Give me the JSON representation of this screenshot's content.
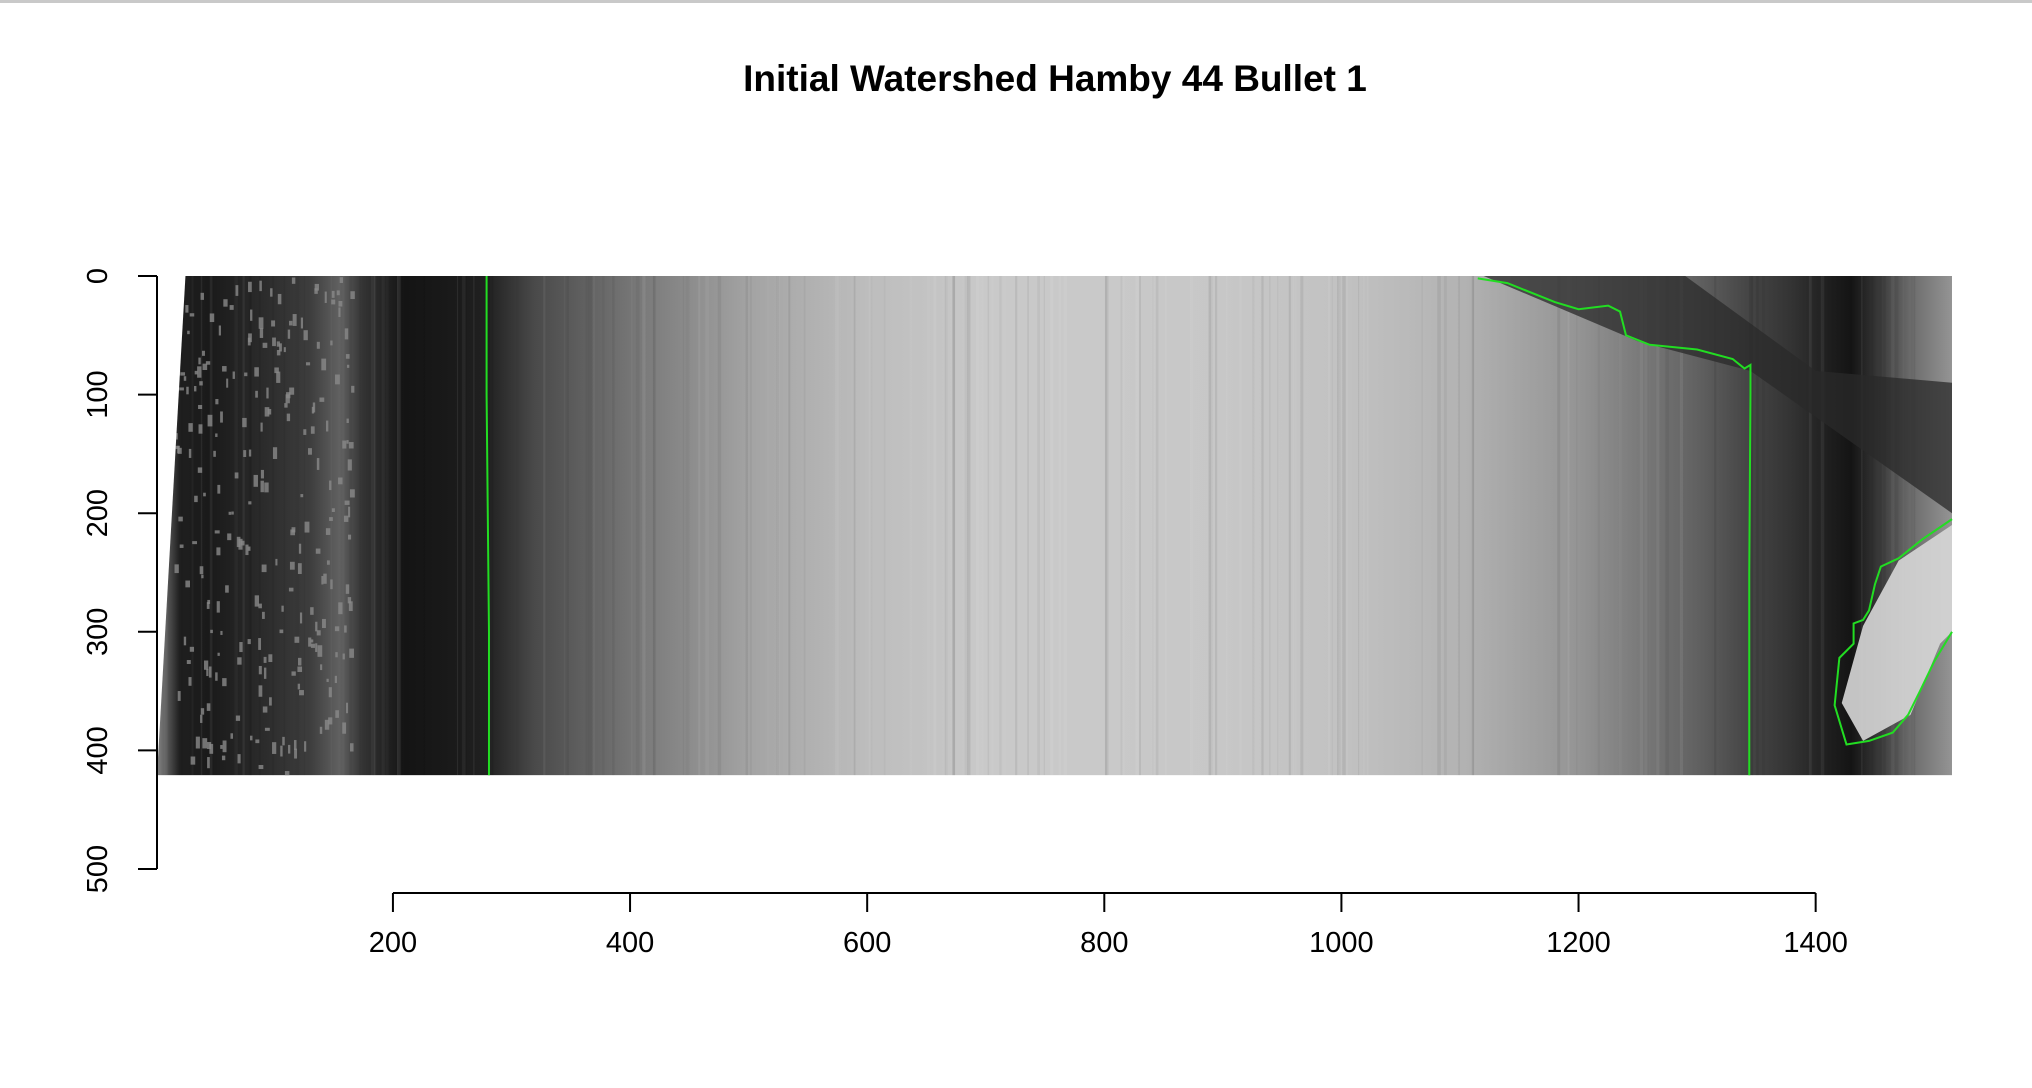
{
  "chart_data": {
    "type": "heatmap",
    "title": "Initial Watershed Hamby 44 Bullet 1",
    "xlabel": "",
    "ylabel": "",
    "xlim": [
      1,
      1515
    ],
    "ylim": [
      500,
      0
    ],
    "image_extent": {
      "x": [
        1,
        1515
      ],
      "y": [
        0,
        421
      ]
    },
    "x_ticks": [
      200,
      400,
      600,
      800,
      1000,
      1200,
      1400
    ],
    "y_ticks": [
      0,
      100,
      200,
      300,
      400,
      500
    ],
    "colormap": "grayscale",
    "grayscale_profile": {
      "x": [
        1,
        20,
        45,
        90,
        130,
        155,
        175,
        210,
        250,
        280,
        320,
        400,
        500,
        600,
        700,
        800,
        900,
        1000,
        1100,
        1200,
        1300,
        1340,
        1380,
        1410,
        1430,
        1450,
        1480,
        1515
      ],
      "gray_value": [
        0.52,
        0.12,
        0.1,
        0.17,
        0.24,
        0.38,
        0.2,
        0.08,
        0.1,
        0.13,
        0.29,
        0.46,
        0.64,
        0.74,
        0.79,
        0.79,
        0.78,
        0.76,
        0.7,
        0.58,
        0.38,
        0.28,
        0.2,
        0.12,
        0.08,
        0.2,
        0.42,
        0.58
      ]
    },
    "watershed_boundaries": {
      "color": "#22dd22",
      "lines": [
        {
          "x": [
            279,
            279,
            280,
            281,
            281
          ],
          "y": [
            0,
            100,
            200,
            300,
            421
          ]
        },
        {
          "x": [
            1115,
            1140,
            1180,
            1200,
            1225,
            1235,
            1240,
            1260,
            1300,
            1330,
            1340,
            1345,
            1345,
            1344,
            1344
          ],
          "y": [
            2,
            6,
            22,
            28,
            25,
            30,
            50,
            58,
            62,
            70,
            78,
            75,
            100,
            250,
            421
          ]
        },
        {
          "x": [
            1515,
            1490,
            1470,
            1455,
            1450,
            1445,
            1440,
            1432,
            1432,
            1420,
            1416,
            1426,
            1445,
            1465,
            1478,
            1488,
            1500,
            1515
          ],
          "y": [
            205,
            222,
            238,
            245,
            260,
            282,
            290,
            293,
            310,
            322,
            362,
            395,
            392,
            385,
            370,
            350,
            325,
            300
          ]
        }
      ]
    }
  }
}
